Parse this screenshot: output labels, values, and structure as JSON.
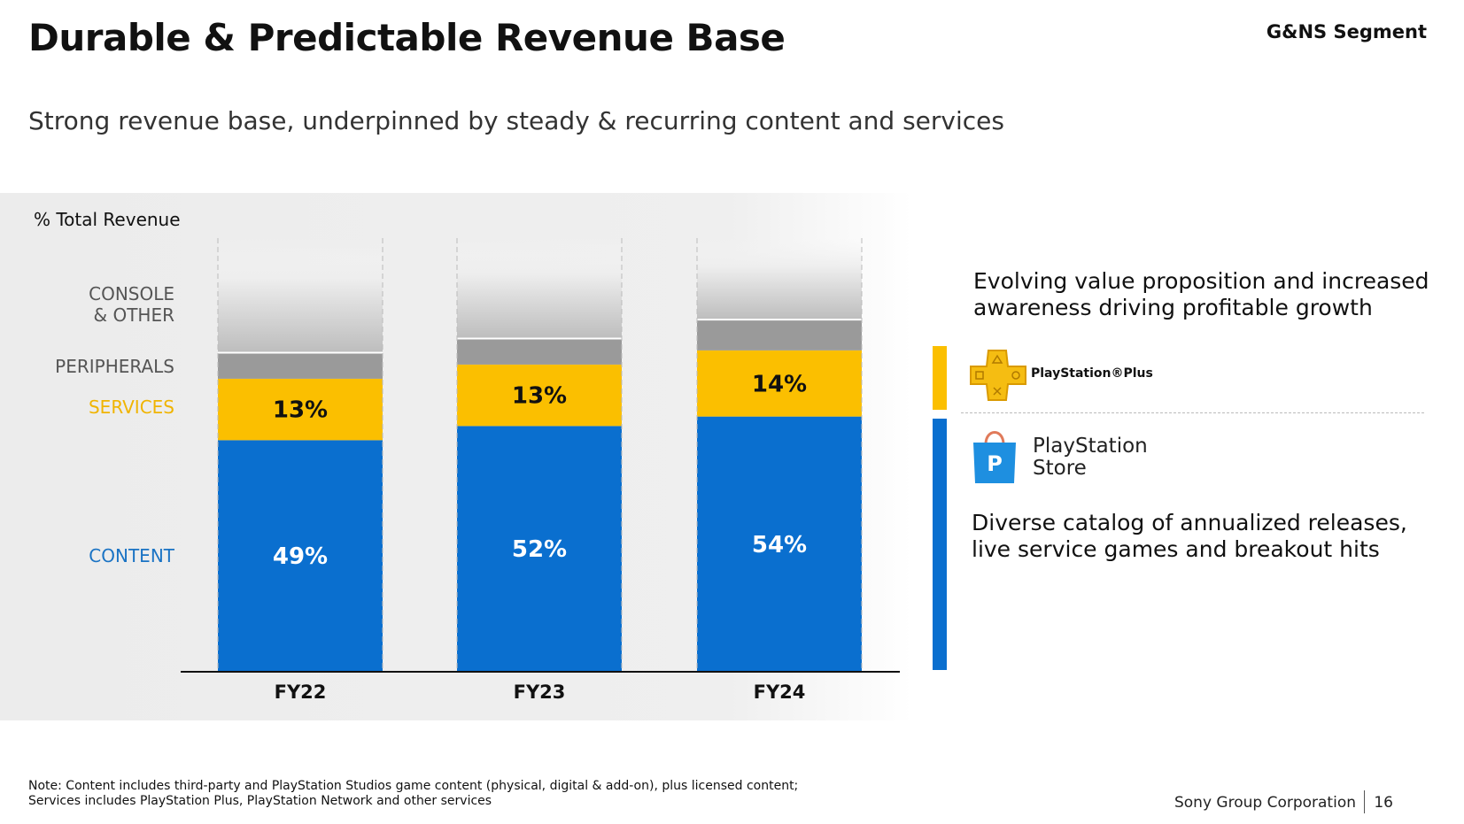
{
  "header": {
    "title": "Durable & Predictable Revenue Base",
    "segment": "G&NS Segment",
    "subtitle": "Strong revenue base, underpinned by steady & recurring content and services"
  },
  "chart_data": {
    "type": "bar",
    "stacked": true,
    "ylabel": "% Total Revenue",
    "categories": [
      "FY22",
      "FY23",
      "FY24"
    ],
    "series": [
      {
        "name": "CONTENT",
        "values": [
          49,
          52,
          54
        ],
        "labels": [
          "49%",
          "52%",
          "54%"
        ],
        "color": "#0a6fcf"
      },
      {
        "name": "SERVICES",
        "values": [
          13,
          13,
          14
        ],
        "labels": [
          "13%",
          "13%",
          "14%"
        ],
        "color": "#fbbf00"
      },
      {
        "name": "PERIPHERALS",
        "values": [
          5.5,
          5.5,
          6.5
        ],
        "color": "#9a9a9a"
      },
      {
        "name": "CONSOLE & OTHER",
        "values": [
          32.5,
          29.5,
          25.5
        ],
        "color": "#d6d6d6"
      }
    ],
    "legend_label_colors": {
      "CONTENT": "#1a73c4",
      "SERVICES": "#f0b400",
      "PERIPHERALS": "#555555",
      "CONSOLE & OTHER": "#555555"
    },
    "grid": false,
    "legend": "left"
  },
  "right": {
    "services_text": "Evolving value proposition and increased awareness driving profitable growth",
    "psplus_logo": "PlayStation®Plus",
    "store_logo_line1": "PlayStation",
    "store_logo_line2": "Store",
    "content_text": "Diverse catalog of annualized releases, live service games and breakout hits",
    "accent_services": "#fbbf00",
    "accent_content": "#0a6fcf"
  },
  "footer": {
    "note_line1": "Note: Content includes third-party and PlayStation Studios game content (physical, digital & add-on), plus licensed content;",
    "note_line2": "Services includes PlayStation Plus, PlayStation Network and other services",
    "company": "Sony Group Corporation",
    "page": "16"
  }
}
